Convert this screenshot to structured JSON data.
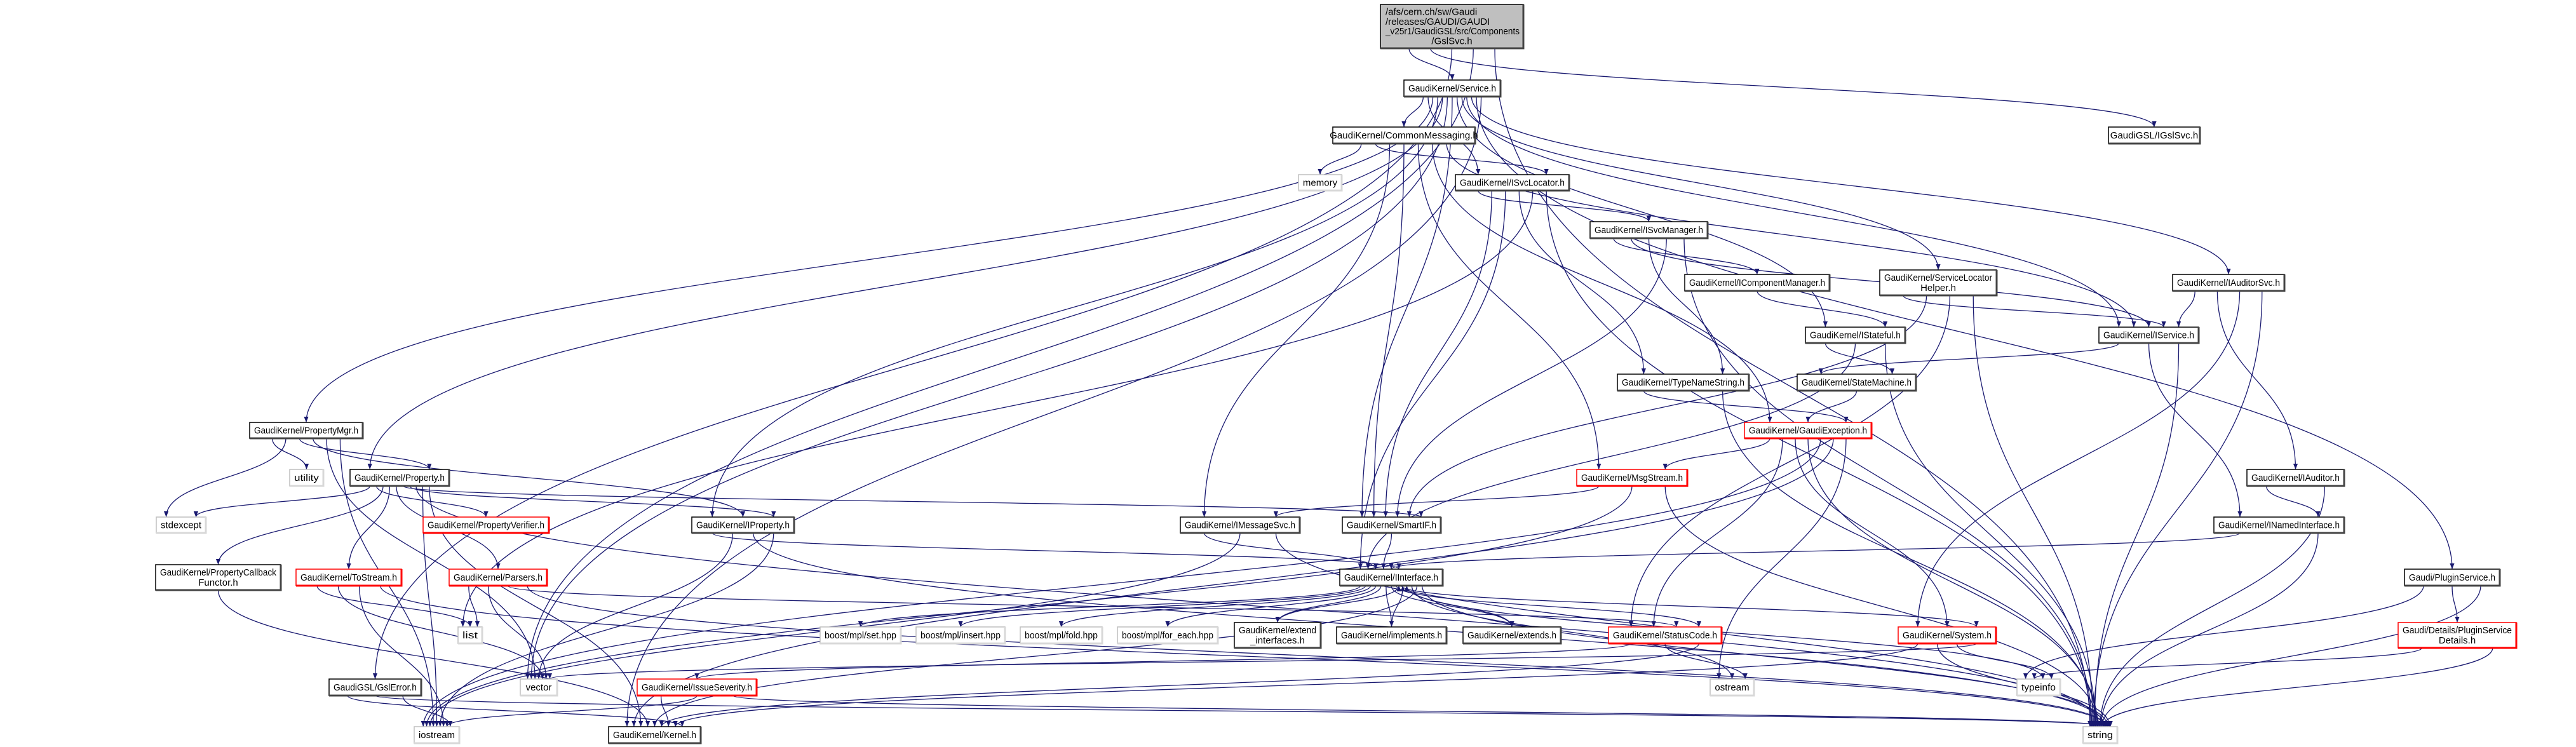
{
  "colors": {
    "edge": "#191970",
    "node_border": "#000000",
    "external_border": "#bfbfbf",
    "incomplete_border": "#ff0000",
    "root_fill": "#bfbfbf",
    "node_fill": "#ffffff"
  },
  "graph": {
    "type": "include-dependency-graph",
    "nodes": [
      {
        "id": "root",
        "lines": [
          "/afs/cern.ch/sw/Gaudi",
          "/releases/GAUDI/GAUDI",
          "_v25r1/GaudiGSL/src/Components",
          "/GslSvc.h"
        ],
        "style": "root"
      },
      {
        "id": "service",
        "lines": [
          "GaudiKernel/Service.h"
        ],
        "style": "normal"
      },
      {
        "id": "commonmsg",
        "lines": [
          "GaudiKernel/CommonMessaging.h"
        ],
        "style": "normal"
      },
      {
        "id": "memory",
        "lines": [
          "memory"
        ],
        "style": "external"
      },
      {
        "id": "isvclocator",
        "lines": [
          "GaudiKernel/ISvcLocator.h"
        ],
        "style": "normal"
      },
      {
        "id": "igslsvc",
        "lines": [
          "GaudiGSL/IGslSvc.h"
        ],
        "style": "normal"
      },
      {
        "id": "isvcmanager",
        "lines": [
          "GaudiKernel/ISvcManager.h"
        ],
        "style": "normal"
      },
      {
        "id": "icompmgr",
        "lines": [
          "GaudiKernel/IComponentManager.h"
        ],
        "style": "normal"
      },
      {
        "id": "typenamestring",
        "lines": [
          "GaudiKernel/TypeNameString.h"
        ],
        "style": "normal"
      },
      {
        "id": "svclochelper",
        "lines": [
          "GaudiKernel/ServiceLocator",
          "Helper.h"
        ],
        "style": "normal"
      },
      {
        "id": "iauditorsvc",
        "lines": [
          "GaudiKernel/IAuditorSvc.h"
        ],
        "style": "normal"
      },
      {
        "id": "istateful",
        "lines": [
          "GaudiKernel/IStateful.h"
        ],
        "style": "normal"
      },
      {
        "id": "iservice",
        "lines": [
          "GaudiKernel/IService.h"
        ],
        "style": "normal"
      },
      {
        "id": "statemachine",
        "lines": [
          "GaudiKernel/StateMachine.h"
        ],
        "style": "normal"
      },
      {
        "id": "gaudiexception",
        "lines": [
          "GaudiKernel/GaudiException.h"
        ],
        "style": "incomplete"
      },
      {
        "id": "msgstream",
        "lines": [
          "GaudiKernel/MsgStream.h"
        ],
        "style": "incomplete"
      },
      {
        "id": "imessagesvc",
        "lines": [
          "GaudiKernel/IMessageSvc.h"
        ],
        "style": "normal"
      },
      {
        "id": "smartif",
        "lines": [
          "GaudiKernel/SmartIF.h"
        ],
        "style": "normal"
      },
      {
        "id": "iauditor",
        "lines": [
          "GaudiKernel/IAuditor.h"
        ],
        "style": "normal"
      },
      {
        "id": "inamedinterface",
        "lines": [
          "GaudiKernel/INamedInterface.h"
        ],
        "style": "normal"
      },
      {
        "id": "propertymgr",
        "lines": [
          "GaudiKernel/PropertyMgr.h"
        ],
        "style": "normal"
      },
      {
        "id": "utility",
        "lines": [
          "utility"
        ],
        "style": "external"
      },
      {
        "id": "property",
        "lines": [
          "GaudiKernel/Property.h"
        ],
        "style": "normal"
      },
      {
        "id": "stdexcept",
        "lines": [
          "stdexcept"
        ],
        "style": "external"
      },
      {
        "id": "propertyverifier",
        "lines": [
          "GaudiKernel/PropertyVerifier.h"
        ],
        "style": "incomplete"
      },
      {
        "id": "iproperty",
        "lines": [
          "GaudiKernel/IProperty.h"
        ],
        "style": "normal"
      },
      {
        "id": "propcallback",
        "lines": [
          "GaudiKernel/PropertyCallback",
          "Functor.h"
        ],
        "style": "normal"
      },
      {
        "id": "tostream",
        "lines": [
          "GaudiKernel/ToStream.h"
        ],
        "style": "incomplete"
      },
      {
        "id": "parsers",
        "lines": [
          "GaudiKernel/Parsers.h"
        ],
        "style": "incomplete"
      },
      {
        "id": "list",
        "lines": [
          "list"
        ],
        "style": "external"
      },
      {
        "id": "interface",
        "lines": [
          "GaudiKernel/IInterface.h"
        ],
        "style": "normal"
      },
      {
        "id": "mplset",
        "lines": [
          "boost/mpl/set.hpp"
        ],
        "style": "external"
      },
      {
        "id": "mplinsert",
        "lines": [
          "boost/mpl/insert.hpp"
        ],
        "style": "external"
      },
      {
        "id": "mplfold",
        "lines": [
          "boost/mpl/fold.hpp"
        ],
        "style": "external"
      },
      {
        "id": "mplforeach",
        "lines": [
          "boost/mpl/for_each.hpp"
        ],
        "style": "external"
      },
      {
        "id": "extendinterfaces",
        "lines": [
          "GaudiKernel/extend",
          "_interfaces.h"
        ],
        "style": "normal"
      },
      {
        "id": "implements",
        "lines": [
          "GaudiKernel/implements.h"
        ],
        "style": "normal"
      },
      {
        "id": "extends",
        "lines": [
          "GaudiKernel/extends.h"
        ],
        "style": "normal"
      },
      {
        "id": "statuscode",
        "lines": [
          "GaudiKernel/StatusCode.h"
        ],
        "style": "incomplete"
      },
      {
        "id": "pluginservice",
        "lines": [
          "Gaudi/PluginService.h"
        ],
        "style": "normal"
      },
      {
        "id": "pluginservicedetails",
        "lines": [
          "Gaudi/Details/PluginService",
          "Details.h"
        ],
        "style": "incomplete"
      },
      {
        "id": "system",
        "lines": [
          "GaudiKernel/System.h"
        ],
        "style": "incomplete"
      },
      {
        "id": "gslerror",
        "lines": [
          "GaudiGSL/GslError.h"
        ],
        "style": "normal"
      },
      {
        "id": "vector",
        "lines": [
          "vector"
        ],
        "style": "external"
      },
      {
        "id": "issueseverity",
        "lines": [
          "GaudiKernel/IssueSeverity.h"
        ],
        "style": "incomplete"
      },
      {
        "id": "ostream",
        "lines": [
          "ostream"
        ],
        "style": "external"
      },
      {
        "id": "typeinfo",
        "lines": [
          "typeinfo"
        ],
        "style": "external"
      },
      {
        "id": "iostream",
        "lines": [
          "iostream"
        ],
        "style": "external"
      },
      {
        "id": "kernel",
        "lines": [
          "GaudiKernel/Kernel.h"
        ],
        "style": "normal"
      },
      {
        "id": "string",
        "lines": [
          "string"
        ],
        "style": "external"
      }
    ],
    "edges": [
      [
        "root",
        "service"
      ],
      [
        "root",
        "igslsvc"
      ],
      [
        "root",
        "gslerror"
      ],
      [
        "root",
        "vector"
      ],
      [
        "root",
        "string"
      ],
      [
        "service",
        "commonmsg"
      ],
      [
        "service",
        "isvclocator"
      ],
      [
        "service",
        "propertymgr"
      ],
      [
        "service",
        "iproperty"
      ],
      [
        "service",
        "property"
      ],
      [
        "service",
        "vector"
      ],
      [
        "service",
        "smartif"
      ],
      [
        "service",
        "istateful"
      ],
      [
        "service",
        "svclochelper"
      ],
      [
        "service",
        "iservice"
      ],
      [
        "service",
        "iauditorsvc"
      ],
      [
        "service",
        "pluginservice"
      ],
      [
        "service",
        "kernel"
      ],
      [
        "commonmsg",
        "memory"
      ],
      [
        "commonmsg",
        "isvclocator"
      ],
      [
        "commonmsg",
        "imessagesvc"
      ],
      [
        "commonmsg",
        "smartif"
      ],
      [
        "commonmsg",
        "msgstream"
      ],
      [
        "commonmsg",
        "gaudiexception"
      ],
      [
        "commonmsg",
        "iservice"
      ],
      [
        "isvclocator",
        "isvcmanager"
      ],
      [
        "isvclocator",
        "smartif"
      ],
      [
        "isvclocator",
        "interface"
      ],
      [
        "isvclocator",
        "typenamestring"
      ],
      [
        "isvclocator",
        "list"
      ],
      [
        "isvclocator",
        "string"
      ],
      [
        "isvcmanager",
        "icompmgr"
      ],
      [
        "isvcmanager",
        "iservice"
      ],
      [
        "isvcmanager",
        "typenamestring"
      ],
      [
        "isvcmanager",
        "smartif"
      ],
      [
        "isvcmanager",
        "string"
      ],
      [
        "icompmgr",
        "istateful"
      ],
      [
        "svclochelper",
        "iservice"
      ],
      [
        "svclochelper",
        "smartif"
      ],
      [
        "svclochelper",
        "statuscode"
      ],
      [
        "svclochelper",
        "string"
      ],
      [
        "iauditorsvc",
        "iservice"
      ],
      [
        "iauditorsvc",
        "iauditor"
      ],
      [
        "iauditorsvc",
        "system"
      ],
      [
        "iauditorsvc",
        "string"
      ],
      [
        "iservice",
        "statemachine"
      ],
      [
        "iservice",
        "inamedinterface"
      ],
      [
        "iservice",
        "string"
      ],
      [
        "istateful",
        "statemachine"
      ],
      [
        "istateful",
        "interface"
      ],
      [
        "istateful",
        "string"
      ],
      [
        "statemachine",
        "gaudiexception"
      ],
      [
        "typenamestring",
        "gaudiexception"
      ],
      [
        "typenamestring",
        "string"
      ],
      [
        "gaudiexception",
        "msgstream"
      ],
      [
        "gaudiexception",
        "statuscode"
      ],
      [
        "gaudiexception",
        "system"
      ],
      [
        "gaudiexception",
        "string"
      ],
      [
        "gaudiexception",
        "iostream"
      ],
      [
        "gaudiexception",
        "kernel"
      ],
      [
        "gaudiexception",
        "ostream"
      ],
      [
        "msgstream",
        "imessagesvc"
      ],
      [
        "msgstream",
        "iostream"
      ],
      [
        "msgstream",
        "string"
      ],
      [
        "imessagesvc",
        "interface"
      ],
      [
        "imessagesvc",
        "iostream"
      ],
      [
        "imessagesvc",
        "string"
      ],
      [
        "smartif",
        "interface"
      ],
      [
        "iauditor",
        "inamedinterface"
      ],
      [
        "iauditor",
        "string"
      ],
      [
        "inamedinterface",
        "interface"
      ],
      [
        "inamedinterface",
        "string"
      ],
      [
        "pluginservice",
        "typeinfo"
      ],
      [
        "pluginservice",
        "pluginservicedetails"
      ],
      [
        "pluginservice",
        "string"
      ],
      [
        "pluginservicedetails",
        "typeinfo"
      ],
      [
        "pluginservicedetails",
        "string"
      ],
      [
        "propertymgr",
        "utility"
      ],
      [
        "propertymgr",
        "stdexcept"
      ],
      [
        "propertymgr",
        "property"
      ],
      [
        "propertymgr",
        "iproperty"
      ],
      [
        "propertymgr",
        "vector"
      ],
      [
        "propertymgr",
        "iostream"
      ],
      [
        "property",
        "stdexcept"
      ],
      [
        "property",
        "propertyverifier"
      ],
      [
        "property",
        "propcallback"
      ],
      [
        "property",
        "tostream"
      ],
      [
        "property",
        "parsers"
      ],
      [
        "property",
        "smartif"
      ],
      [
        "property",
        "iproperty"
      ],
      [
        "property",
        "string"
      ],
      [
        "property",
        "iostream"
      ],
      [
        "property",
        "kernel"
      ],
      [
        "iproperty",
        "interface"
      ],
      [
        "iproperty",
        "vector"
      ],
      [
        "iproperty",
        "string"
      ],
      [
        "iproperty",
        "iostream"
      ],
      [
        "tostream",
        "list"
      ],
      [
        "tostream",
        "vector"
      ],
      [
        "tostream",
        "iostream"
      ],
      [
        "tostream",
        "string"
      ],
      [
        "parsers",
        "list"
      ],
      [
        "parsers",
        "vector"
      ],
      [
        "parsers",
        "statuscode"
      ],
      [
        "parsers",
        "string"
      ],
      [
        "propcallback",
        "kernel"
      ],
      [
        "interface",
        "mplset"
      ],
      [
        "interface",
        "mplinsert"
      ],
      [
        "interface",
        "mplfold"
      ],
      [
        "interface",
        "mplforeach"
      ],
      [
        "interface",
        "extendinterfaces"
      ],
      [
        "interface",
        "implements"
      ],
      [
        "interface",
        "extends"
      ],
      [
        "interface",
        "statuscode"
      ],
      [
        "interface",
        "system"
      ],
      [
        "interface",
        "typeinfo"
      ],
      [
        "interface",
        "ostream"
      ],
      [
        "interface",
        "kernel"
      ],
      [
        "interface",
        "string"
      ],
      [
        "extendinterfaces",
        "interface"
      ],
      [
        "implements",
        "interface"
      ],
      [
        "extends",
        "interface"
      ],
      [
        "statuscode",
        "issueseverity"
      ],
      [
        "statuscode",
        "ostream"
      ],
      [
        "statuscode",
        "kernel"
      ],
      [
        "issueseverity",
        "kernel"
      ],
      [
        "issueseverity",
        "iostream"
      ],
      [
        "issueseverity",
        "string"
      ],
      [
        "system",
        "kernel"
      ],
      [
        "system",
        "string"
      ],
      [
        "system",
        "typeinfo"
      ],
      [
        "system",
        "vector"
      ],
      [
        "gslerror",
        "kernel"
      ],
      [
        "gslerror",
        "string"
      ],
      [
        "gslerror",
        "iostream"
      ]
    ]
  }
}
